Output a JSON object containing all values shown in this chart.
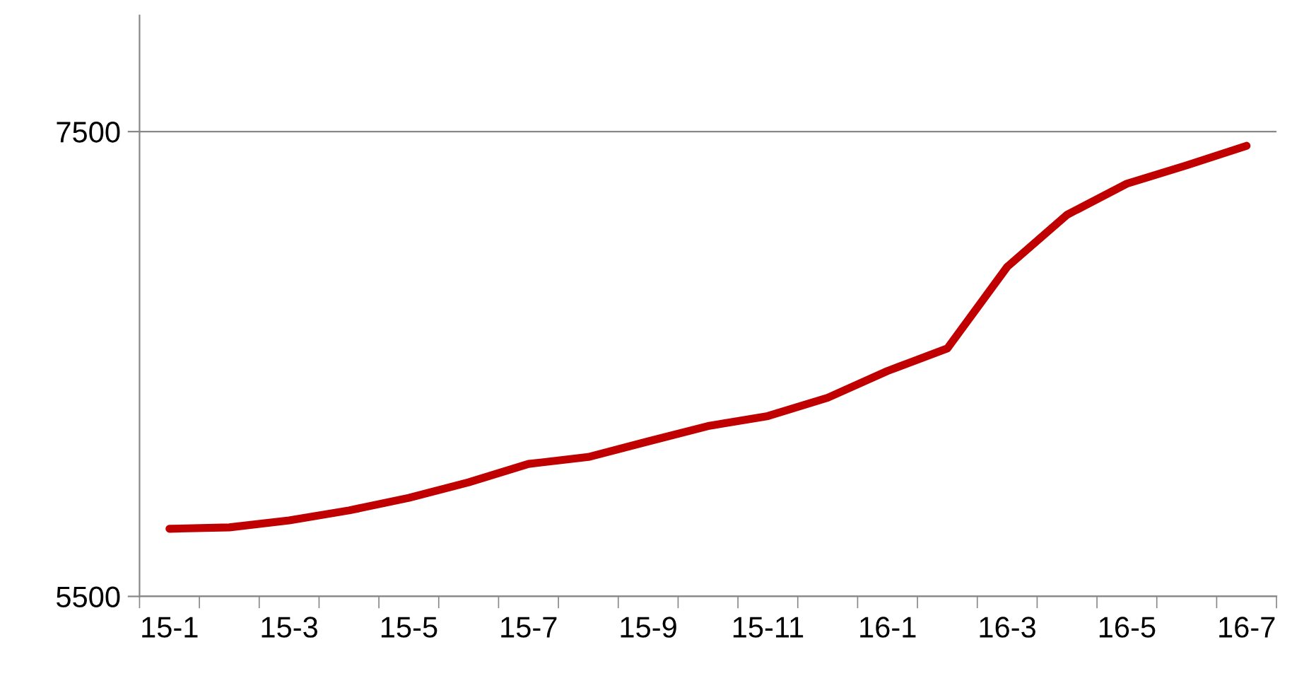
{
  "chart_data": {
    "type": "line",
    "categories": [
      "15-1",
      null,
      "15-3",
      null,
      "15-5",
      null,
      "15-7",
      null,
      "15-9",
      null,
      "15-11",
      null,
      "16-1",
      null,
      "16-3",
      null,
      "16-5",
      null,
      "16-7"
    ],
    "series": [
      {
        "color": "#c00000",
        "values": [
          5791,
          5797,
          5827,
          5870,
          5924,
          5991,
          6070,
          6100,
          6167,
          6233,
          6276,
          6355,
          6470,
          6567,
          6918,
          7142,
          7276,
          7355,
          7439
        ]
      }
    ],
    "ylim": [
      5500,
      8000
    ],
    "yticks": [
      5500,
      7500
    ],
    "grid": "y",
    "line_style": "solid",
    "marker": "none",
    "legend": false
  }
}
